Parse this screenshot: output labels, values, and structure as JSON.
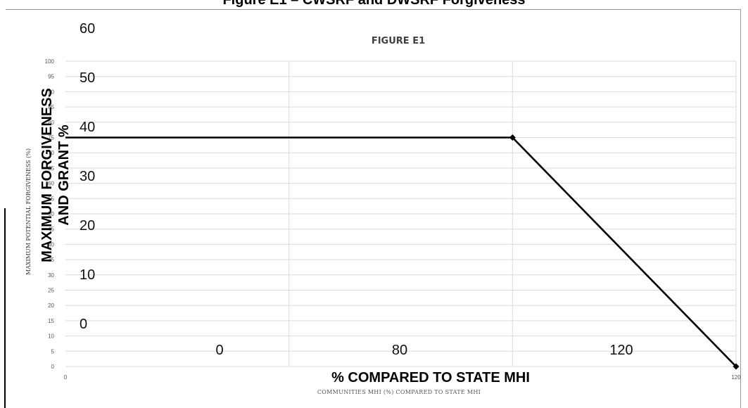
{
  "page": {
    "title": "Figure E1 – CWSRF and DWSRF Forgiveness"
  },
  "chart_data": {
    "type": "line",
    "title": "FIGURE E1",
    "xlabel": "COMMUNITIES MHI (%) COMPARED TO STATE MHI",
    "ylabel": "MAXIMUM POTENTIAL FORGIVENESS (%)",
    "xlim": [
      0,
      120
    ],
    "ylim": [
      0,
      100
    ],
    "x_ticks": [
      {
        "value": 0,
        "label": "0"
      },
      {
        "value": 120,
        "label": "120"
      }
    ],
    "y_ticks": [
      {
        "value": 0,
        "label": "0"
      },
      {
        "value": 5,
        "label": "5"
      },
      {
        "value": 10,
        "label": "10"
      },
      {
        "value": 15,
        "label": "15"
      },
      {
        "value": 20,
        "label": "20"
      },
      {
        "value": 25,
        "label": "25"
      },
      {
        "value": 30,
        "label": "30"
      },
      {
        "value": 35,
        "label": "35"
      },
      {
        "value": 40,
        "label": "40"
      },
      {
        "value": 45,
        "label": "45"
      },
      {
        "value": 50,
        "label": "50"
      },
      {
        "value": 55,
        "label": "55"
      },
      {
        "value": 60,
        "label": "60"
      },
      {
        "value": 65,
        "label": "65"
      },
      {
        "value": 70,
        "label": "70"
      },
      {
        "value": 75,
        "label": "75"
      },
      {
        "value": 80,
        "label": "80"
      },
      {
        "value": 85,
        "label": "85"
      },
      {
        "value": 90,
        "label": "90"
      },
      {
        "value": 95,
        "label": "95"
      },
      {
        "value": 100,
        "label": "100"
      }
    ],
    "x_gridlines": [
      40,
      80
    ],
    "grid": true,
    "series": [
      {
        "x": [
          0,
          80,
          120
        ],
        "y": [
          75,
          75,
          0
        ],
        "color": "#000000"
      }
    ],
    "overlay_axis": {
      "xlabel": "% COMPARED TO STATE MHI",
      "ylabel_lines": [
        "MAXIMUM FORGIVENESS",
        "AND GRANT %"
      ],
      "x_ticks": [
        {
          "value": 0,
          "label": "0"
        },
        {
          "value": 80,
          "label": "80"
        },
        {
          "value": 120,
          "label": "120"
        }
      ],
      "y_ticks": [
        {
          "value": 0,
          "label": "0"
        },
        {
          "value": 10,
          "label": "10"
        },
        {
          "value": 20,
          "label": "20"
        },
        {
          "value": 30,
          "label": "30"
        },
        {
          "value": 40,
          "label": "40"
        },
        {
          "value": 50,
          "label": "50"
        },
        {
          "value": 60,
          "label": "60"
        }
      ]
    }
  }
}
